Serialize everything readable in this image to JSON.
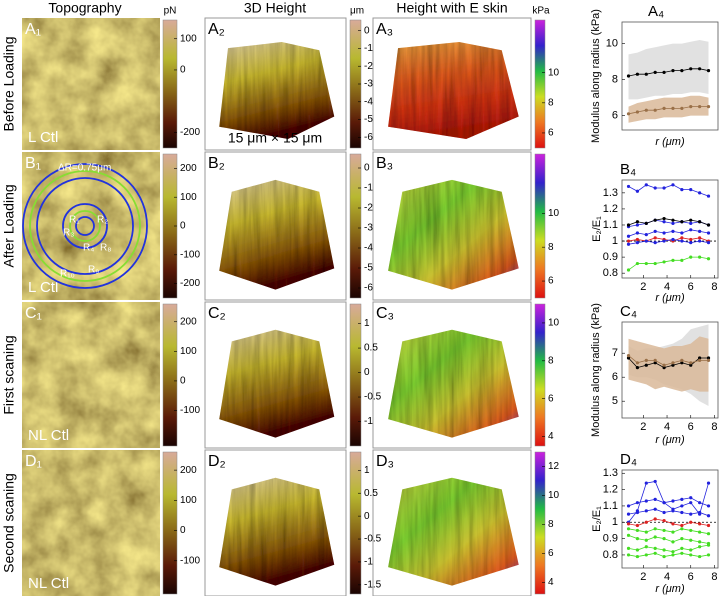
{
  "headers": {
    "topography": "Topography",
    "height": "3D Height",
    "eskin": "Height with E skin"
  },
  "colorbar_units": [
    "pN",
    "μm",
    "kPa"
  ],
  "scale_note": "15 μm × 15 μm",
  "rings": {
    "delta": "ΔR=0.75μm",
    "labels": [
      "R₁",
      "R₂",
      "R₃",
      "R₄",
      "R₈",
      "R₉",
      "R₁₀"
    ]
  },
  "rows": [
    {
      "name": "Before Loading",
      "panels": [
        "A₁",
        "A₂",
        "A₃"
      ],
      "note": "L Ctl",
      "colorbars": [
        {
          "lim": [
            -250,
            160
          ],
          "ticks": [
            100,
            0,
            -200
          ]
        },
        {
          "lim": [
            -6.6,
            0.6
          ],
          "ticks": [
            0,
            -1,
            -2,
            -3,
            -4,
            -5,
            -6
          ]
        },
        {
          "lim": [
            5,
            13.5
          ],
          "ticks": [
            10,
            8,
            6
          ]
        }
      ]
    },
    {
      "name": "After Loading",
      "panels": [
        "B₁",
        "B₂",
        "B₃"
      ],
      "note": "L Ctl",
      "colorbars": [
        {
          "lim": [
            -250,
            250
          ],
          "ticks": [
            200,
            100,
            0,
            -100,
            -200
          ]
        },
        {
          "lim": [
            -6.5,
            0.7
          ],
          "ticks": [
            0,
            -1,
            -2,
            -3,
            -4,
            -5,
            -6
          ]
        },
        {
          "lim": [
            5,
            13.5
          ],
          "ticks": [
            10,
            8,
            6
          ]
        }
      ]
    },
    {
      "name": "First scaning",
      "panels": [
        "C₁",
        "C₂",
        "C₃"
      ],
      "note": "NL Ctl",
      "colorbars": [
        {
          "lim": [
            -220,
            260
          ],
          "ticks": [
            200,
            100,
            0,
            -100
          ]
        },
        {
          "lim": [
            -1.5,
            1.4
          ],
          "ticks": [
            1,
            0.5,
            0,
            -0.5,
            -1
          ]
        },
        {
          "lim": [
            3.5,
            11
          ],
          "ticks": [
            10,
            8,
            6,
            4
          ]
        }
      ]
    },
    {
      "name": "Second scaning",
      "panels": [
        "D₁",
        "D₂",
        "D₃"
      ],
      "note": "NL Ctl",
      "colorbars": [
        {
          "lim": [
            -210,
            260
          ],
          "ticks": [
            200,
            100,
            0,
            -100
          ]
        },
        {
          "lim": [
            -1.7,
            1.4
          ],
          "ticks": [
            1,
            0.5,
            0,
            -0.5,
            -1,
            -1.5
          ]
        },
        {
          "lim": [
            3.2,
            13
          ],
          "ticks": [
            12,
            10,
            8,
            6,
            4
          ]
        }
      ]
    }
  ],
  "chart_data": [
    {
      "type": "line",
      "title": "A₄",
      "ylabel": "Modulus along radius (kPa)",
      "xlabel": "r (μm)",
      "x": [
        0.75,
        1.5,
        2.25,
        3,
        3.75,
        4.5,
        5.25,
        6,
        6.75,
        7.5
      ],
      "xlim": [
        0.2,
        8.3
      ],
      "ylim": [
        5.2,
        11.2
      ],
      "yticks": [
        6,
        8,
        10
      ],
      "bands": [
        {
          "color": "#dcdcdc",
          "lower": [
            6.9,
            6.9,
            7.0,
            7.1,
            7.1,
            7.2,
            7.2,
            7.3,
            7.3,
            7.2
          ],
          "upper": [
            9.4,
            9.5,
            9.7,
            9.8,
            9.9,
            10.0,
            10.0,
            10.1,
            10.2,
            10.1
          ]
        },
        {
          "color": "#d9b999",
          "lower": [
            5.6,
            5.7,
            5.8,
            5.8,
            5.9,
            5.9,
            5.9,
            6.0,
            6.0,
            6.0
          ],
          "upper": [
            6.5,
            6.7,
            6.8,
            6.9,
            7.0,
            7.0,
            7.0,
            7.1,
            7.1,
            7.0
          ]
        }
      ],
      "series": [
        {
          "color": "#000000",
          "values": [
            8.2,
            8.3,
            8.3,
            8.4,
            8.4,
            8.5,
            8.5,
            8.6,
            8.6,
            8.5
          ]
        },
        {
          "color": "#9a7048",
          "values": [
            6.1,
            6.2,
            6.3,
            6.3,
            6.4,
            6.4,
            6.4,
            6.5,
            6.5,
            6.5
          ]
        }
      ]
    },
    {
      "type": "line",
      "title": "B₄",
      "ylabel": "E₂/E₁",
      "xlabel": "r (μm)",
      "x": [
        0.75,
        1.5,
        2.25,
        3,
        3.75,
        4.5,
        5.25,
        6,
        6.75,
        7.5
      ],
      "xlim": [
        0.2,
        8.3
      ],
      "xticks": [
        2,
        4,
        6,
        8
      ],
      "ylim": [
        0.77,
        1.38
      ],
      "yticks": [
        0.8,
        0.9,
        1,
        1.1,
        1.2,
        1.3
      ],
      "hline": 1,
      "series": [
        {
          "color": "#2222dd",
          "values": [
            1.34,
            1.31,
            1.35,
            1.33,
            1.33,
            1.35,
            1.32,
            1.32,
            1.3,
            1.28
          ]
        },
        {
          "color": "#2222dd",
          "values": [
            1.09,
            1.1,
            1.11,
            1.13,
            1.12,
            1.11,
            1.12,
            1.11,
            1.12,
            1.1
          ]
        },
        {
          "color": "#000000",
          "values": [
            1.1,
            1.12,
            1.11,
            1.13,
            1.14,
            1.13,
            1.12,
            1.13,
            1.12,
            1.1
          ]
        },
        {
          "color": "#2222dd",
          "values": [
            1.03,
            1.05,
            1.04,
            1.06,
            1.05,
            1.06,
            1.05,
            1.07,
            1.06,
            1.05
          ]
        },
        {
          "color": "#dd2222",
          "values": [
            1.0,
            1.01,
            1.0,
            1.02,
            1.01,
            1.0,
            1.02,
            1.01,
            1.02,
            1.0
          ]
        },
        {
          "color": "#2222dd",
          "values": [
            0.98,
            0.99,
            1.0,
            0.99,
            1.0,
            1.01,
            1.0,
            0.99,
            1.0,
            0.99
          ]
        },
        {
          "color": "#44dd22",
          "values": [
            0.82,
            0.86,
            0.86,
            0.86,
            0.87,
            0.88,
            0.88,
            0.9,
            0.9,
            0.89
          ]
        }
      ]
    },
    {
      "type": "line",
      "title": "C₄",
      "ylabel": "Modulus along radius (kPa)",
      "xlabel": "r (μm)",
      "x": [
        0.75,
        1.5,
        2.25,
        3,
        3.75,
        4.5,
        5.25,
        6,
        6.75,
        7.5
      ],
      "xlim": [
        0.2,
        8.3
      ],
      "xticks": [
        2,
        4,
        6,
        8
      ],
      "ylim": [
        4.3,
        8.3
      ],
      "yticks": [
        5,
        6,
        7
      ],
      "bands": [
        {
          "color": "#dcdcdc",
          "lower": [
            6.1,
            6.0,
            6.0,
            5.9,
            5.7,
            5.6,
            5.5,
            5.3,
            5.0,
            4.8
          ],
          "upper": [
            7.3,
            7.1,
            7.2,
            7.2,
            7.3,
            7.4,
            7.6,
            8.0,
            8.1,
            8.2
          ]
        },
        {
          "color": "#d9b999",
          "lower": [
            5.9,
            5.8,
            5.7,
            5.5,
            5.6,
            5.5,
            5.4,
            5.5,
            5.4,
            5.4
          ],
          "upper": [
            7.6,
            7.5,
            7.4,
            7.3,
            7.2,
            7.3,
            7.3,
            7.4,
            7.7,
            7.6
          ]
        }
      ],
      "series": [
        {
          "color": "#000000",
          "values": [
            6.8,
            6.4,
            6.5,
            6.6,
            6.4,
            6.5,
            6.6,
            6.5,
            6.8,
            6.8
          ]
        },
        {
          "color": "#9a7048",
          "values": [
            6.9,
            6.6,
            6.7,
            6.7,
            6.5,
            6.6,
            6.7,
            6.6,
            6.7,
            6.7
          ]
        }
      ]
    },
    {
      "type": "line",
      "title": "D₄",
      "ylabel": "E₂/E₁",
      "xlabel": "r (μm)",
      "x": [
        0.75,
        1.5,
        2.25,
        3,
        3.75,
        4.5,
        5.25,
        6,
        6.75,
        7.5
      ],
      "xlim": [
        0.2,
        8.3
      ],
      "xticks": [
        2,
        4,
        6,
        8
      ],
      "ylim": [
        0.72,
        1.32
      ],
      "yticks": [
        0.8,
        0.9,
        1,
        1.1,
        1.2,
        1.3
      ],
      "hline": 1,
      "series": [
        {
          "color": "#2222dd",
          "values": [
            1.0,
            1.07,
            1.24,
            1.25,
            1.12,
            1.08,
            1.1,
            1.12,
            1.05,
            1.24
          ]
        },
        {
          "color": "#2222dd",
          "values": [
            1.1,
            1.12,
            1.13,
            1.14,
            1.12,
            1.13,
            1.14,
            1.15,
            1.12,
            1.1
          ]
        },
        {
          "color": "#2222dd",
          "values": [
            1.05,
            1.06,
            1.07,
            1.08,
            1.06,
            1.07,
            1.06,
            1.05,
            1.06,
            1.04
          ]
        },
        {
          "color": "#dd2222",
          "values": [
            0.99,
            0.98,
            1.0,
            1.02,
            1.01,
            0.99,
            0.98,
            1.0,
            0.99,
            0.98
          ]
        },
        {
          "color": "#44dd22",
          "values": [
            0.96,
            0.95,
            0.94,
            0.96,
            0.95,
            0.94,
            0.96,
            0.95,
            0.94,
            0.93
          ]
        },
        {
          "color": "#44dd22",
          "values": [
            0.92,
            0.9,
            0.89,
            0.91,
            0.9,
            0.88,
            0.9,
            0.89,
            0.88,
            0.87
          ]
        },
        {
          "color": "#44dd22",
          "values": [
            0.84,
            0.83,
            0.85,
            0.84,
            0.83,
            0.82,
            0.84,
            0.83,
            0.85,
            0.86
          ]
        },
        {
          "color": "#44dd22",
          "values": [
            0.8,
            0.79,
            0.8,
            0.81,
            0.79,
            0.8,
            0.81,
            0.8,
            0.79,
            0.8
          ]
        }
      ]
    }
  ]
}
